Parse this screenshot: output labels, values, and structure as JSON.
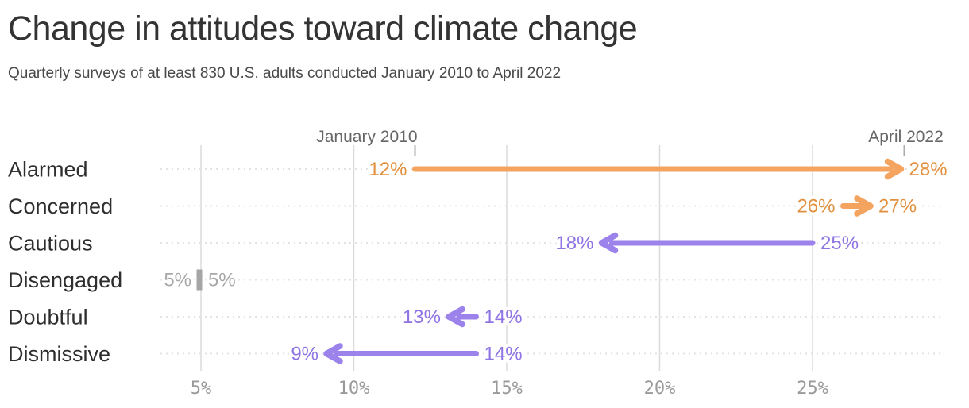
{
  "chart_data": {
    "type": "arrow",
    "title": "Change in attitudes toward climate change",
    "subtitle": "Quarterly surveys of at least 830 U.S. adults conducted January 2010 to April 2022",
    "categories": [
      "Alarmed",
      "Concerned",
      "Cautious",
      "Disengaged",
      "Doubtful",
      "Dismissive"
    ],
    "series": [
      {
        "name": "January 2010",
        "values": [
          12,
          26,
          25,
          5,
          14,
          14
        ]
      },
      {
        "name": "April 2022",
        "values": [
          28,
          27,
          18,
          5,
          13,
          9
        ]
      }
    ],
    "rows": [
      {
        "category": "Alarmed",
        "start": 12,
        "end": 28,
        "start_label": "12%",
        "end_label": "28%",
        "change": "increase"
      },
      {
        "category": "Concerned",
        "start": 26,
        "end": 27,
        "start_label": "26%",
        "end_label": "27%",
        "change": "increase"
      },
      {
        "category": "Cautious",
        "start": 25,
        "end": 18,
        "start_label": "25%",
        "end_label": "18%",
        "change": "decrease"
      },
      {
        "category": "Disengaged",
        "start": 5,
        "end": 5,
        "start_label": "5%",
        "end_label": "5%",
        "change": "none"
      },
      {
        "category": "Doubtful",
        "start": 14,
        "end": 13,
        "start_label": "14%",
        "end_label": "13%",
        "change": "decrease"
      },
      {
        "category": "Dismissive",
        "start": 14,
        "end": 9,
        "start_label": "14%",
        "end_label": "9%",
        "change": "decrease"
      }
    ],
    "x_axis": {
      "tick_labels": [
        "5%",
        "10%",
        "15%",
        "20%",
        "25%"
      ],
      "tick_values": [
        5,
        10,
        15,
        20,
        25
      ],
      "unit": "%",
      "range": [
        5,
        28
      ],
      "grid": true
    },
    "annotations": [
      {
        "text": "January 2010",
        "at_value": 12,
        "row": "Alarmed",
        "align": "end"
      },
      {
        "text": "April 2022",
        "at_value": 28,
        "row": "Alarmed",
        "align": "middle"
      }
    ],
    "legend_position": "none",
    "colors": {
      "increase_arrow": "#F5A45F",
      "increase_text": "#E28F3E",
      "decrease_arrow": "#9C82EB",
      "decrease_text": "#8F74E4",
      "neutral_marker": "#A5A5A5",
      "neutral_text": "#A8A8A8",
      "gridline": "#DBDBDB",
      "leader_dots": "#E3E3E3",
      "axis_tick_text": "#9A9A9A",
      "annotation_text": "#666666",
      "annotation_tick": "#ABABAB",
      "category_text": "#2E2E2E",
      "title_text": "#333333",
      "subtitle_text": "#4A4A4A"
    }
  }
}
